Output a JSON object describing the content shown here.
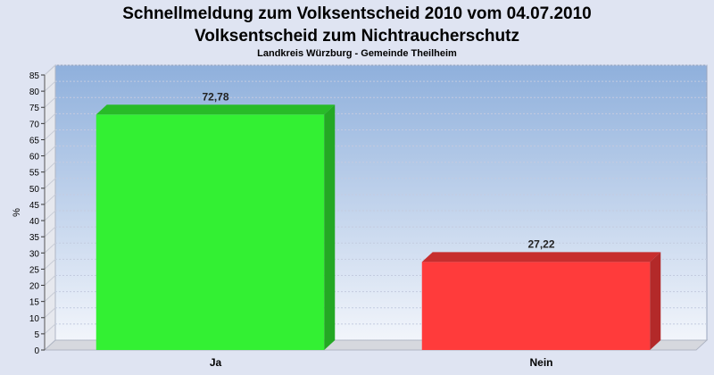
{
  "chart_data": {
    "type": "bar",
    "title_lines": [
      "Schnellmeldung zum Volksentscheid 2010 vom 04.07.2010",
      "Volksentscheid zum Nichtraucherschutz"
    ],
    "subtitle": "Landkreis Würzburg - Gemeinde Theilheim",
    "xlabel": "",
    "ylabel": "%",
    "ylim": [
      0,
      85
    ],
    "ytick_step": 5,
    "categories": [
      "Ja",
      "Nein"
    ],
    "values": [
      72.78,
      27.22
    ],
    "value_labels": [
      "72,78",
      "27,22"
    ],
    "bar_colors": [
      "#33f033",
      "#ff3b3b"
    ],
    "grid": true,
    "legend": "none"
  }
}
